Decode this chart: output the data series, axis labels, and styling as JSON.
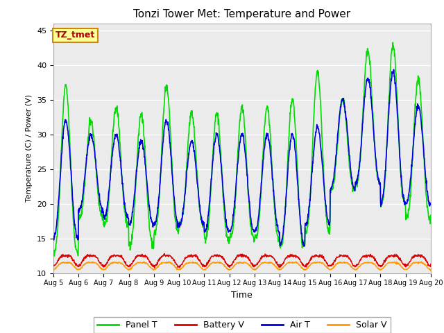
{
  "title": "Tonzi Tower Met: Temperature and Power",
  "xlabel": "Time",
  "ylabel": "Temperature (C) / Power (V)",
  "ylim": [
    10,
    46
  ],
  "xlim": [
    0,
    15
  ],
  "label_text": "TZ_tmet",
  "legend": [
    "Panel T",
    "Battery V",
    "Air T",
    "Solar V"
  ],
  "colors": {
    "panel_t": "#00DD00",
    "battery_v": "#DD0000",
    "air_t": "#0000DD",
    "solar_v": "#FF9900"
  },
  "background_color": "#EBEBEB",
  "xtick_labels": [
    "Aug 5",
    "Aug 6",
    "Aug 7",
    "Aug 8",
    "Aug 9",
    "Aug 10",
    "Aug 11",
    "Aug 12",
    "Aug 13",
    "Aug 14",
    "Aug 15",
    "Aug 16",
    "Aug 17",
    "Aug 18",
    "Aug 19",
    "Aug 20"
  ],
  "ytick_labels": [
    10,
    15,
    20,
    25,
    30,
    35,
    40,
    45
  ],
  "panel_peaks": [
    37,
    32,
    34,
    33,
    37,
    33,
    33,
    34,
    34,
    35,
    39,
    35,
    42,
    43,
    38
  ],
  "panel_mins": [
    13,
    18,
    17,
    14,
    16,
    17,
    15,
    15,
    15,
    14,
    16,
    22,
    23,
    20,
    18
  ],
  "air_peaks": [
    32,
    30,
    30,
    29,
    32,
    29,
    30,
    30,
    30,
    30,
    31,
    35,
    38,
    39,
    34
  ],
  "air_mins": [
    15,
    19,
    18,
    17,
    17,
    17,
    16,
    16,
    16,
    14,
    17,
    22,
    23,
    20,
    20
  ]
}
